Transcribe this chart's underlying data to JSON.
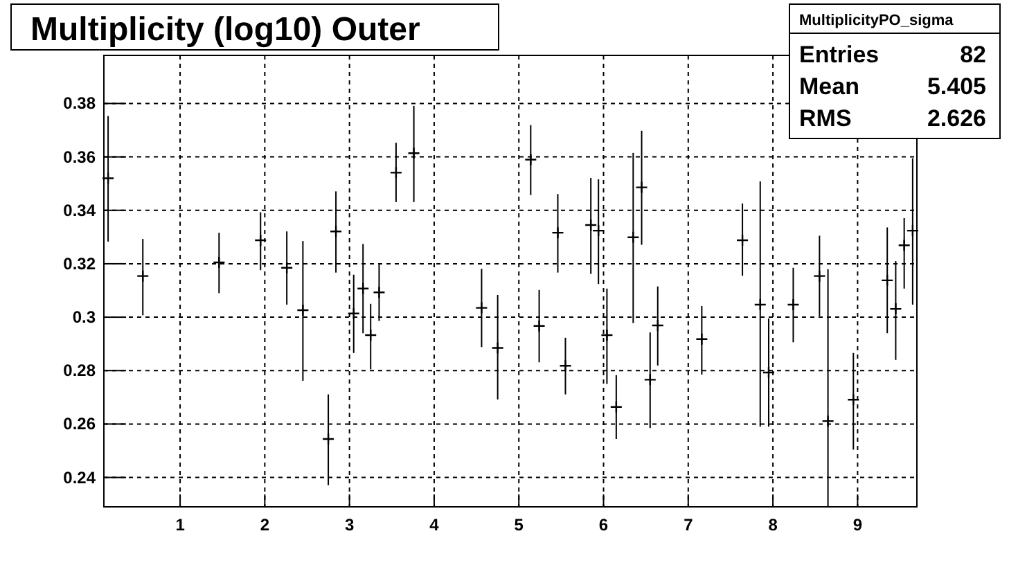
{
  "chart_data": {
    "type": "scatter",
    "title": "Multiplicity (log10) Outer",
    "x": [
      0.15,
      0.56,
      1.46,
      1.95,
      2.26,
      2.45,
      2.75,
      2.84,
      3.05,
      3.16,
      3.25,
      3.35,
      3.55,
      3.76,
      4.56,
      4.75,
      5.14,
      5.24,
      5.46,
      5.55,
      5.85,
      5.94,
      6.04,
      6.15,
      6.35,
      6.45,
      6.55,
      6.64,
      7.16,
      7.64,
      7.85,
      7.95,
      8.24,
      8.55,
      8.65,
      8.95,
      9.35,
      9.45,
      9.55,
      9.65
    ],
    "values": [
      0.352,
      0.3154,
      0.3205,
      0.3288,
      0.3185,
      0.3026,
      0.2544,
      0.3321,
      0.3014,
      0.3107,
      0.2933,
      0.3093,
      0.3541,
      0.3614,
      0.3035,
      0.2885,
      0.359,
      0.2967,
      0.3316,
      0.2818,
      0.3345,
      0.3324,
      0.2933,
      0.2664,
      0.3299,
      0.3486,
      0.2766,
      0.2969,
      0.2918,
      0.3288,
      0.3047,
      0.2793,
      0.3047,
      0.3154,
      0.2611,
      0.2691,
      0.3138,
      0.3031,
      0.3269,
      0.3324
    ],
    "errors": [
      [
        0.3283,
        0.3753
      ],
      [
        0.3007,
        0.3293
      ],
      [
        0.309,
        0.3316
      ],
      [
        0.3176,
        0.3393
      ],
      [
        0.3047,
        0.3321
      ],
      [
        0.2762,
        0.3285
      ],
      [
        0.2371,
        0.2711
      ],
      [
        0.3167,
        0.3471
      ],
      [
        0.2866,
        0.3159
      ],
      [
        0.294,
        0.3274
      ],
      [
        0.2805,
        0.305
      ],
      [
        0.2986,
        0.3197
      ],
      [
        0.3431,
        0.3653
      ],
      [
        0.3431,
        0.3791
      ],
      [
        0.2888,
        0.3181
      ],
      [
        0.2692,
        0.3083
      ],
      [
        0.3457,
        0.3719
      ],
      [
        0.2831,
        0.3102
      ],
      [
        0.3167,
        0.3461
      ],
      [
        0.2711,
        0.2923
      ],
      [
        0.3162,
        0.3521
      ],
      [
        0.3124,
        0.3516
      ],
      [
        0.275,
        0.3107
      ],
      [
        0.2544,
        0.2783
      ],
      [
        0.2978,
        0.3615
      ],
      [
        0.3271,
        0.3698
      ],
      [
        0.2585,
        0.2943
      ],
      [
        0.2819,
        0.3115
      ],
      [
        0.2785,
        0.3042
      ],
      [
        0.3155,
        0.3426
      ],
      [
        0.259,
        0.3508
      ],
      [
        0.259,
        0.2995
      ],
      [
        0.2906,
        0.3185
      ],
      [
        0.3004,
        0.3305
      ],
      [
        0.229,
        0.318
      ],
      [
        0.2504,
        0.2866
      ],
      [
        0.294,
        0.3336
      ],
      [
        0.284,
        0.321
      ],
      [
        0.3107,
        0.3371
      ],
      [
        0.3047,
        0.3595
      ]
    ],
    "color": "#000000",
    "marker": "cross",
    "xlim": [
      0.1,
      9.7
    ],
    "xticks": [
      1,
      2,
      3,
      4,
      5,
      6,
      7,
      8,
      9
    ],
    "ylim": [
      0.229,
      0.398
    ],
    "yticks": [
      0.24,
      0.26,
      0.28,
      0.3,
      0.32,
      0.34,
      0.36,
      0.38
    ],
    "grid": true,
    "annotations": [
      "MultiplicityPO_sigma",
      "Entries 82",
      "Mean 5.405",
      "RMS 2.626"
    ]
  }
}
